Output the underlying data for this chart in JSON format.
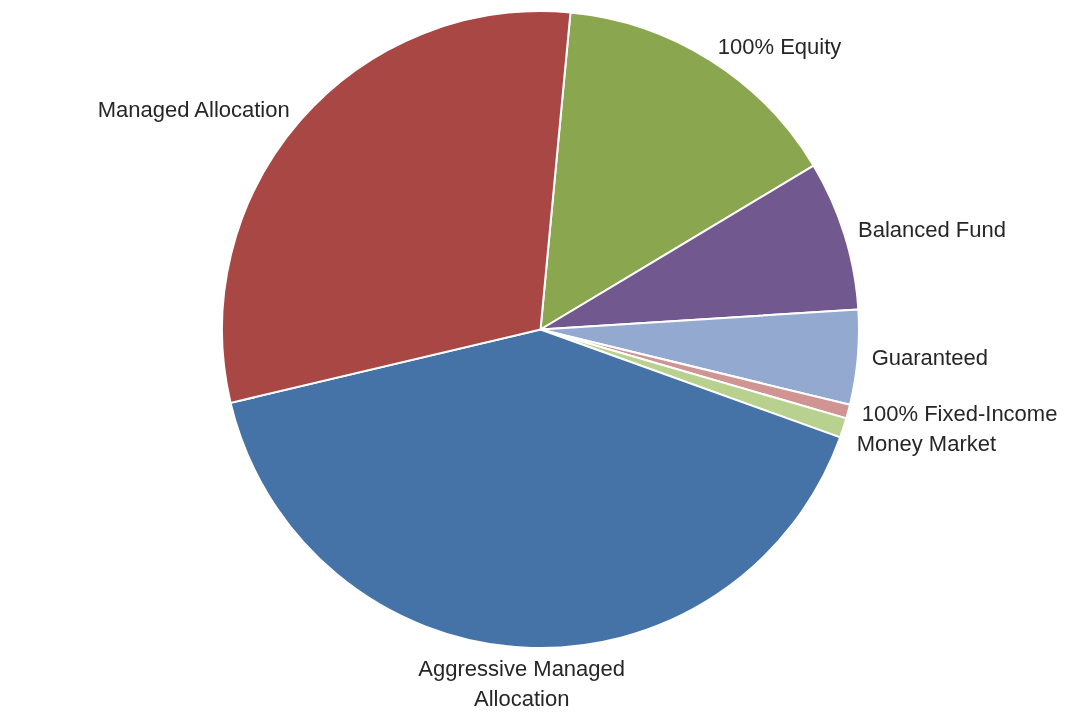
{
  "chart_data": {
    "type": "pie",
    "categories": [
      "100% Equity",
      "Balanced Fund",
      "Guaranteed",
      "100% Fixed-Income",
      "Money Market",
      "Aggressive Managed Allocation",
      "Managed Allocation"
    ],
    "values": [
      14.9,
      7.6,
      4.8,
      0.7,
      1.0,
      40.8,
      30.2
    ],
    "colors": [
      "#8aa64e",
      "#71588f",
      "#93a9cf",
      "#d09493",
      "#b9d18f",
      "#4572a7",
      "#a84744"
    ]
  }
}
